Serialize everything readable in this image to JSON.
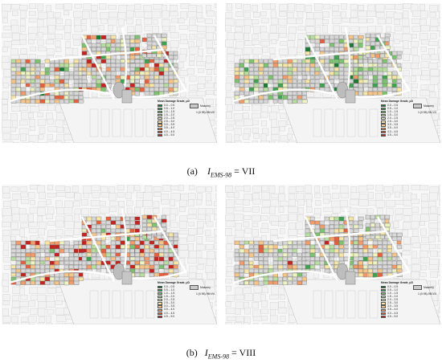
{
  "panels": [
    {
      "id": "a-left",
      "intensity": "VII"
    },
    {
      "id": "a-right",
      "intensity": "VII"
    },
    {
      "id": "b-left",
      "intensity": "VIII"
    },
    {
      "id": "b-right",
      "intensity": "VIII"
    }
  ],
  "legend": {
    "title": "Mean Damage Grade, μD",
    "classes": [
      {
        "label": "0.0 – 0.5",
        "color": "#1a7a32"
      },
      {
        "label": "0.5 – 1.0",
        "color": "#3ea350"
      },
      {
        "label": "1.0 – 1.5",
        "color": "#7cc46f"
      },
      {
        "label": "1.5 – 2.0",
        "color": "#b8dea0"
      },
      {
        "label": "2.0 – 2.5",
        "color": "#eef3c2"
      },
      {
        "label": "2.5 – 3.0",
        "color": "#f7e6a6"
      },
      {
        "label": "3.0 – 3.5",
        "color": "#f6c58a"
      },
      {
        "label": "3.5 – 4.0",
        "color": "#f19c6a"
      },
      {
        "label": "4.0 – 4.5",
        "color": "#e5603f"
      },
      {
        "label": "4.5 – 5.0",
        "color": "#c42420"
      }
    ],
    "masonry_label": "Masonry",
    "scale_label": "1:(0.98)-98=VII"
  },
  "captions": {
    "a": {
      "prefix": "(a)",
      "symbol": "I",
      "subscript": "EMS-98",
      "value": "= VII"
    },
    "b": {
      "prefix": "(b)",
      "symbol": "I",
      "subscript": "EMS-98",
      "value": "= VIII"
    }
  }
}
